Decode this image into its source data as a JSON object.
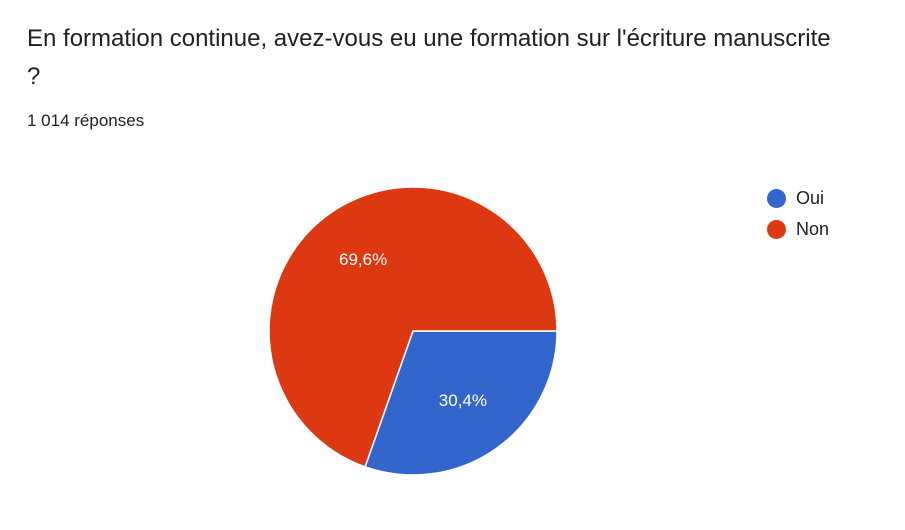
{
  "title": "En formation continue, avez-vous eu une formation sur l'écriture manuscrite ?",
  "response_count": "1 014 réponses",
  "chart_data": {
    "type": "pie",
    "categories": [
      "Oui",
      "Non"
    ],
    "values": [
      30.4,
      69.6
    ],
    "labels": [
      "30,4%",
      "69,6%"
    ],
    "colors": [
      "#3366cc",
      "#dc3912"
    ],
    "legend": "right"
  }
}
